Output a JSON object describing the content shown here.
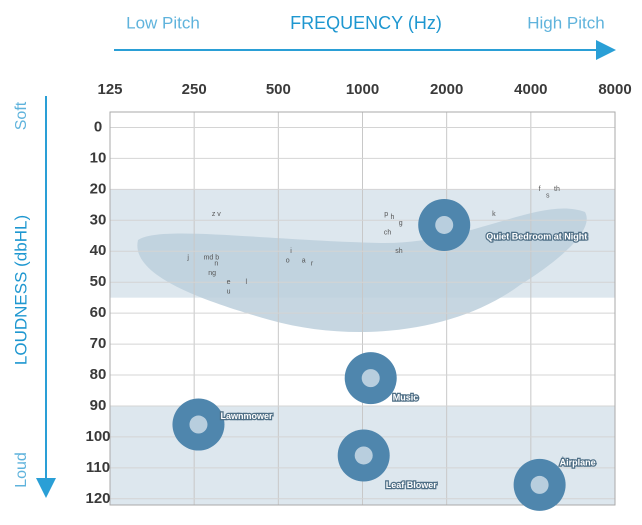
{
  "chart_data": {
    "type": "scatter",
    "title": "FREQUENCY (Hz)",
    "xlabel_left": "Low Pitch",
    "xlabel_right": "High Pitch",
    "ylabel": "LOUDNESS (dbHL)",
    "ylabel_top": "Soft",
    "ylabel_bottom": "Loud",
    "xscale": "log",
    "xlim": [
      125,
      8000
    ],
    "xticks": [
      125,
      250,
      500,
      1000,
      2000,
      4000,
      8000
    ],
    "ylim": [
      -5,
      122
    ],
    "yticks": [
      0,
      10,
      20,
      30,
      40,
      50,
      60,
      70,
      80,
      90,
      100,
      110,
      120
    ],
    "y_inverted": true,
    "grid": true,
    "color": "#2a9fd6",
    "bands": [
      {
        "from": 20,
        "to": 55
      },
      {
        "from": 90,
        "to": 122
      }
    ],
    "band_color": "#dde7ee",
    "sounds": {
      "labels": [
        "Quiet Bedroom at Night",
        "Music",
        "Lawnmower",
        "Leaf Blower",
        "Airplane"
      ],
      "x": [
        1960,
        1070,
        259,
        1010,
        4300
      ],
      "y": [
        31.5,
        81,
        96,
        106,
        115.5
      ],
      "color": "#4f86ad"
    },
    "phonemes": {
      "labels": [
        "z v",
        "j",
        "md b",
        "n",
        "ng",
        "e",
        "l",
        "u",
        "i",
        "o",
        "a",
        "r",
        "p",
        "h",
        "g",
        "ch",
        "sh",
        "k",
        "f",
        "th",
        "s"
      ],
      "x": [
        300,
        238,
        288,
        300,
        290,
        332,
        384,
        332,
        555,
        540,
        616,
        660,
        1216,
        1280,
        1370,
        1230,
        1350,
        2950,
        4300,
        4960,
        4600
      ],
      "y": [
        28,
        42,
        42,
        44,
        47,
        50,
        50,
        53,
        40,
        43,
        43,
        44,
        28,
        29,
        31,
        34,
        40,
        28,
        20,
        20,
        22
      ]
    }
  }
}
